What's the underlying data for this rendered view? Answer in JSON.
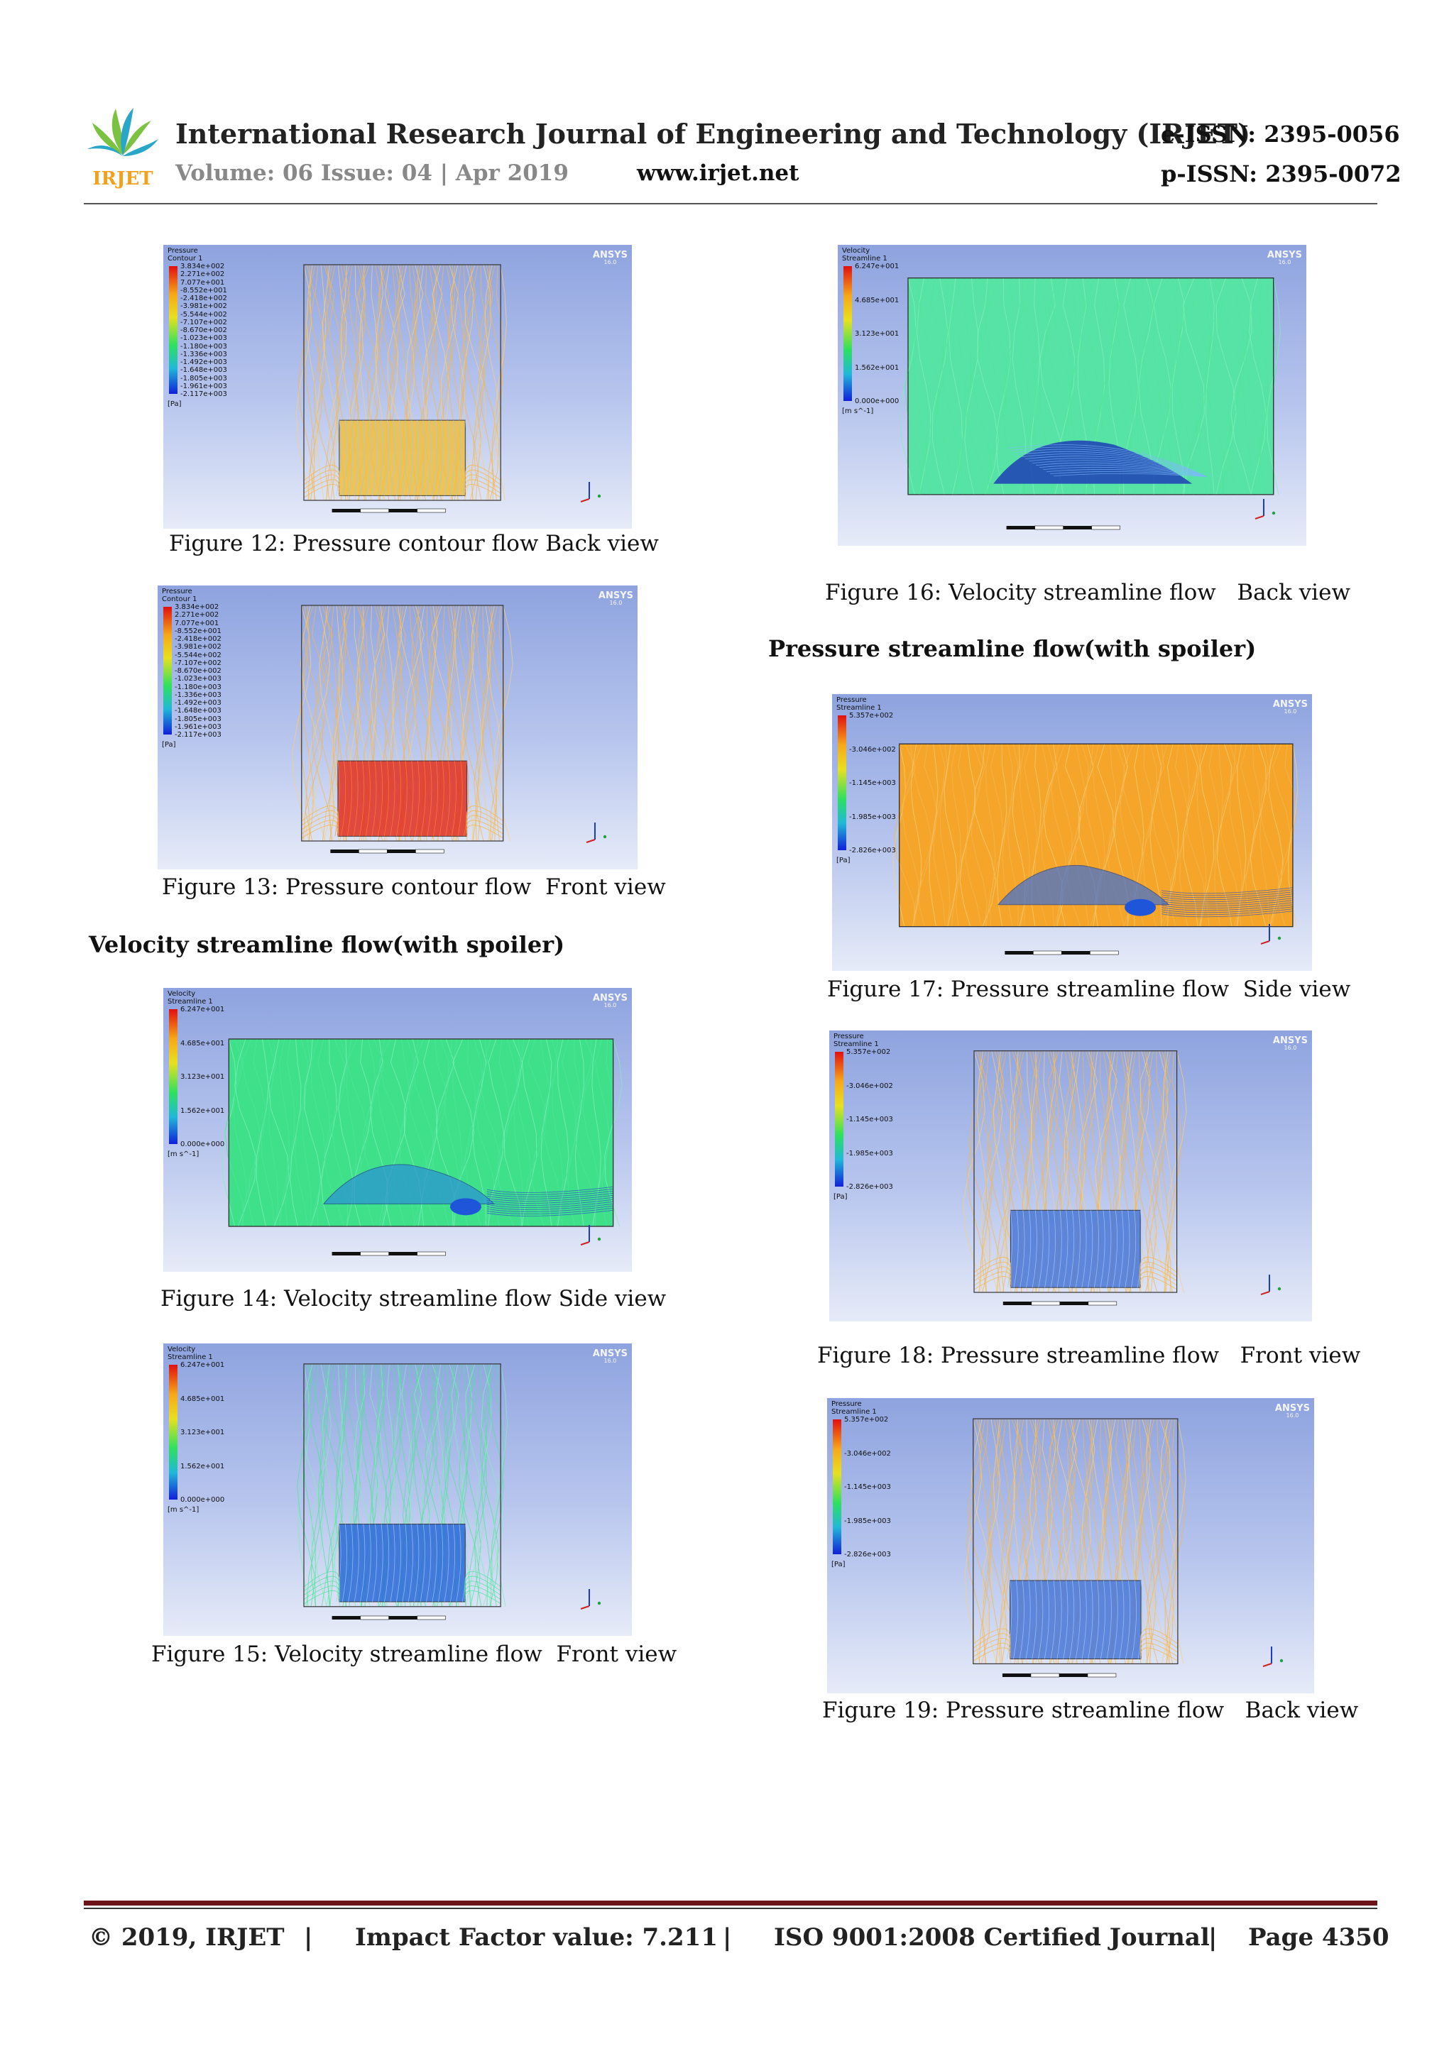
{
  "header": {
    "logo_text": "IRJET",
    "journal_title": "International Research Journal of Engineering and Technology (IRJET)",
    "eissn": "e-ISSN: 2395-0056",
    "volume": "Volume: 06 Issue: 04 | Apr 2019",
    "website": "www.irjet.net",
    "pissn": "p-ISSN: 2395-0072"
  },
  "sections": {
    "velocity_heading": "Velocity streamline flow(with spoiler)",
    "pressure_heading": "Pressure streamline flow(with spoiler)"
  },
  "figures": [
    {
      "id": "fig12",
      "caption": "Figure 12: Pressure contour flow Back view",
      "legend_title": [
        "Pressure",
        "Contour 1"
      ],
      "unit": "[Pa]",
      "ticks": [
        "3.834e+002",
        "2.271e+002",
        "7.077e+001",
        "-8.552e+001",
        "-2.418e+002",
        "-3.981e+002",
        "-5.544e+002",
        "-7.107e+002",
        "-8.670e+002",
        "-1.023e+003",
        "-1.180e+003",
        "-1.336e+003",
        "-1.492e+003",
        "-1.648e+003",
        "-1.805e+003",
        "-1.961e+003",
        "-2.117e+003"
      ],
      "brand": "ANSYS",
      "version": "16.0"
    },
    {
      "id": "fig13",
      "caption": "Figure 13: Pressure contour flow  Front view",
      "legend_title": [
        "Pressure",
        "Contour 1"
      ],
      "unit": "[Pa]",
      "ticks": [
        "3.834e+002",
        "2.271e+002",
        "7.077e+001",
        "-8.552e+001",
        "-2.418e+002",
        "-3.981e+002",
        "-5.544e+002",
        "-7.107e+002",
        "-8.670e+002",
        "-1.023e+003",
        "-1.180e+003",
        "-1.336e+003",
        "-1.492e+003",
        "-1.648e+003",
        "-1.805e+003",
        "-1.961e+003",
        "-2.117e+003"
      ],
      "brand": "ANSYS",
      "version": "16.0"
    },
    {
      "id": "fig14",
      "caption": "Figure 14: Velocity streamline flow Side view",
      "legend_title": [
        "Velocity",
        "Streamline 1"
      ],
      "unit": "[m s^-1]",
      "ticks": [
        "6.247e+001",
        "4.685e+001",
        "3.123e+001",
        "1.562e+001",
        "0.000e+000"
      ],
      "brand": "ANSYS",
      "version": "16.0"
    },
    {
      "id": "fig15",
      "caption": "Figure 15: Velocity streamline flow  Front view",
      "legend_title": [
        "Velocity",
        "Streamline 1"
      ],
      "unit": "[m s^-1]",
      "ticks": [
        "6.247e+001",
        "4.685e+001",
        "3.123e+001",
        "1.562e+001",
        "0.000e+000"
      ],
      "brand": "ANSYS",
      "version": "16.0"
    },
    {
      "id": "fig16",
      "caption": "Figure 16: Velocity streamline flow   Back view",
      "legend_title": [
        "Velocity",
        "Streamline 1"
      ],
      "unit": "[m s^-1]",
      "ticks": [
        "6.247e+001",
        "4.685e+001",
        "3.123e+001",
        "1.562e+001",
        "0.000e+000"
      ],
      "brand": "ANSYS",
      "version": "16.0"
    },
    {
      "id": "fig17",
      "caption": "Figure 17: Pressure streamline flow  Side view",
      "legend_title": [
        "Pressure",
        "Streamline 1"
      ],
      "unit": "[Pa]",
      "ticks": [
        "5.357e+002",
        "-3.046e+002",
        "-1.145e+003",
        "-1.985e+003",
        "-2.826e+003"
      ],
      "brand": "ANSYS",
      "version": "16.0"
    },
    {
      "id": "fig18",
      "caption": "Figure 18: Pressure streamline flow   Front view",
      "legend_title": [
        "Pressure",
        "Streamline 1"
      ],
      "unit": "[Pa]",
      "ticks": [
        "5.357e+002",
        "-3.046e+002",
        "-1.145e+003",
        "-1.985e+003",
        "-2.826e+003"
      ],
      "brand": "ANSYS",
      "version": "16.0"
    },
    {
      "id": "fig19",
      "caption": "Figure 19: Pressure streamline flow   Back view",
      "legend_title": [
        "Pressure",
        "Streamline 1"
      ],
      "unit": "[Pa]",
      "ticks": [
        "5.357e+002",
        "-3.046e+002",
        "-1.145e+003",
        "-1.985e+003",
        "-2.826e+003"
      ],
      "brand": "ANSYS",
      "version": "16.0"
    }
  ],
  "footer": {
    "copyright": "© 2019, IRJET",
    "sep": "|",
    "impact": "Impact Factor value: 7.211",
    "iso": "ISO 9001:2008 Certified Journal",
    "page": "Page 4350"
  },
  "colors": {
    "footer_rule": "#6b1318",
    "pressure_stream": "#f2b24a",
    "velocity_stream": "#3fe08a",
    "vehicle_blue": "#2b5fd9"
  }
}
